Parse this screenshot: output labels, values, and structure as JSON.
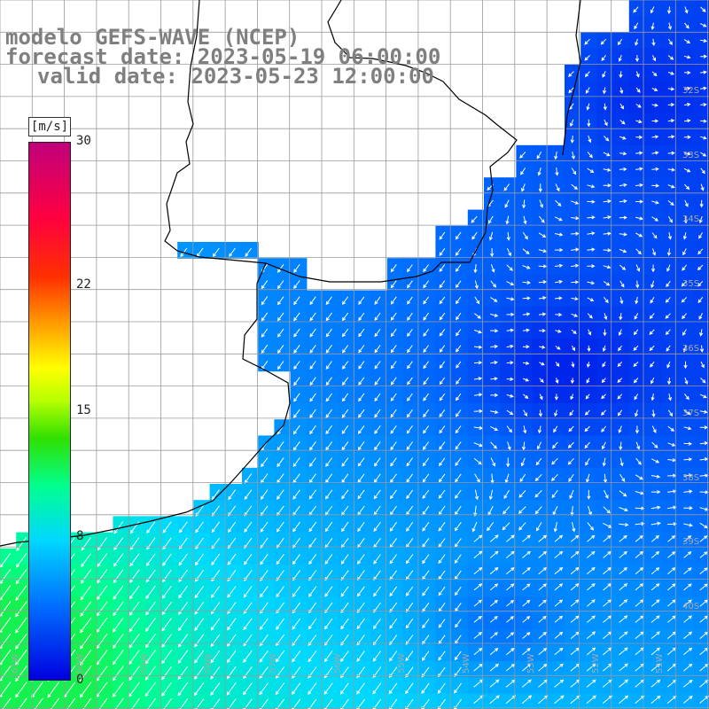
{
  "title": {
    "model": "modelo GEFS-WAVE (NCEP)",
    "forecast": "forecast date: 2023-05-19 06:00:00",
    "valid": "valid date: 2023-05-23 12:00:00"
  },
  "colorbar": {
    "unit": "[m/s]",
    "ticks": [
      {
        "label": "30",
        "value": 30
      },
      {
        "label": "22",
        "value": 22
      },
      {
        "label": "15",
        "value": 15
      },
      {
        "label": "8",
        "value": 8
      },
      {
        "label": "0",
        "value": 0
      }
    ],
    "colors": [
      "#0000e0",
      "#0070ff",
      "#00d8ff",
      "#00ff90",
      "#30e000",
      "#b8ff00",
      "#ffff00",
      "#ffa000",
      "#ff3000",
      "#ff0040",
      "#c0007a"
    ]
  },
  "map": {
    "lat_labels": [
      "32S",
      "33S",
      "34S",
      "35S",
      "36S",
      "37S",
      "38S",
      "39S",
      "40S"
    ],
    "lon_labels": [
      "61W",
      "60W",
      "59W",
      "58W",
      "57W",
      "56W",
      "55W",
      "54W",
      "53W",
      "52W",
      "51W"
    ],
    "land_color": "#ffffff",
    "grid_color": "#9a9a9a",
    "coast_color": "#000000",
    "arrow_color": "#ffffff"
  }
}
